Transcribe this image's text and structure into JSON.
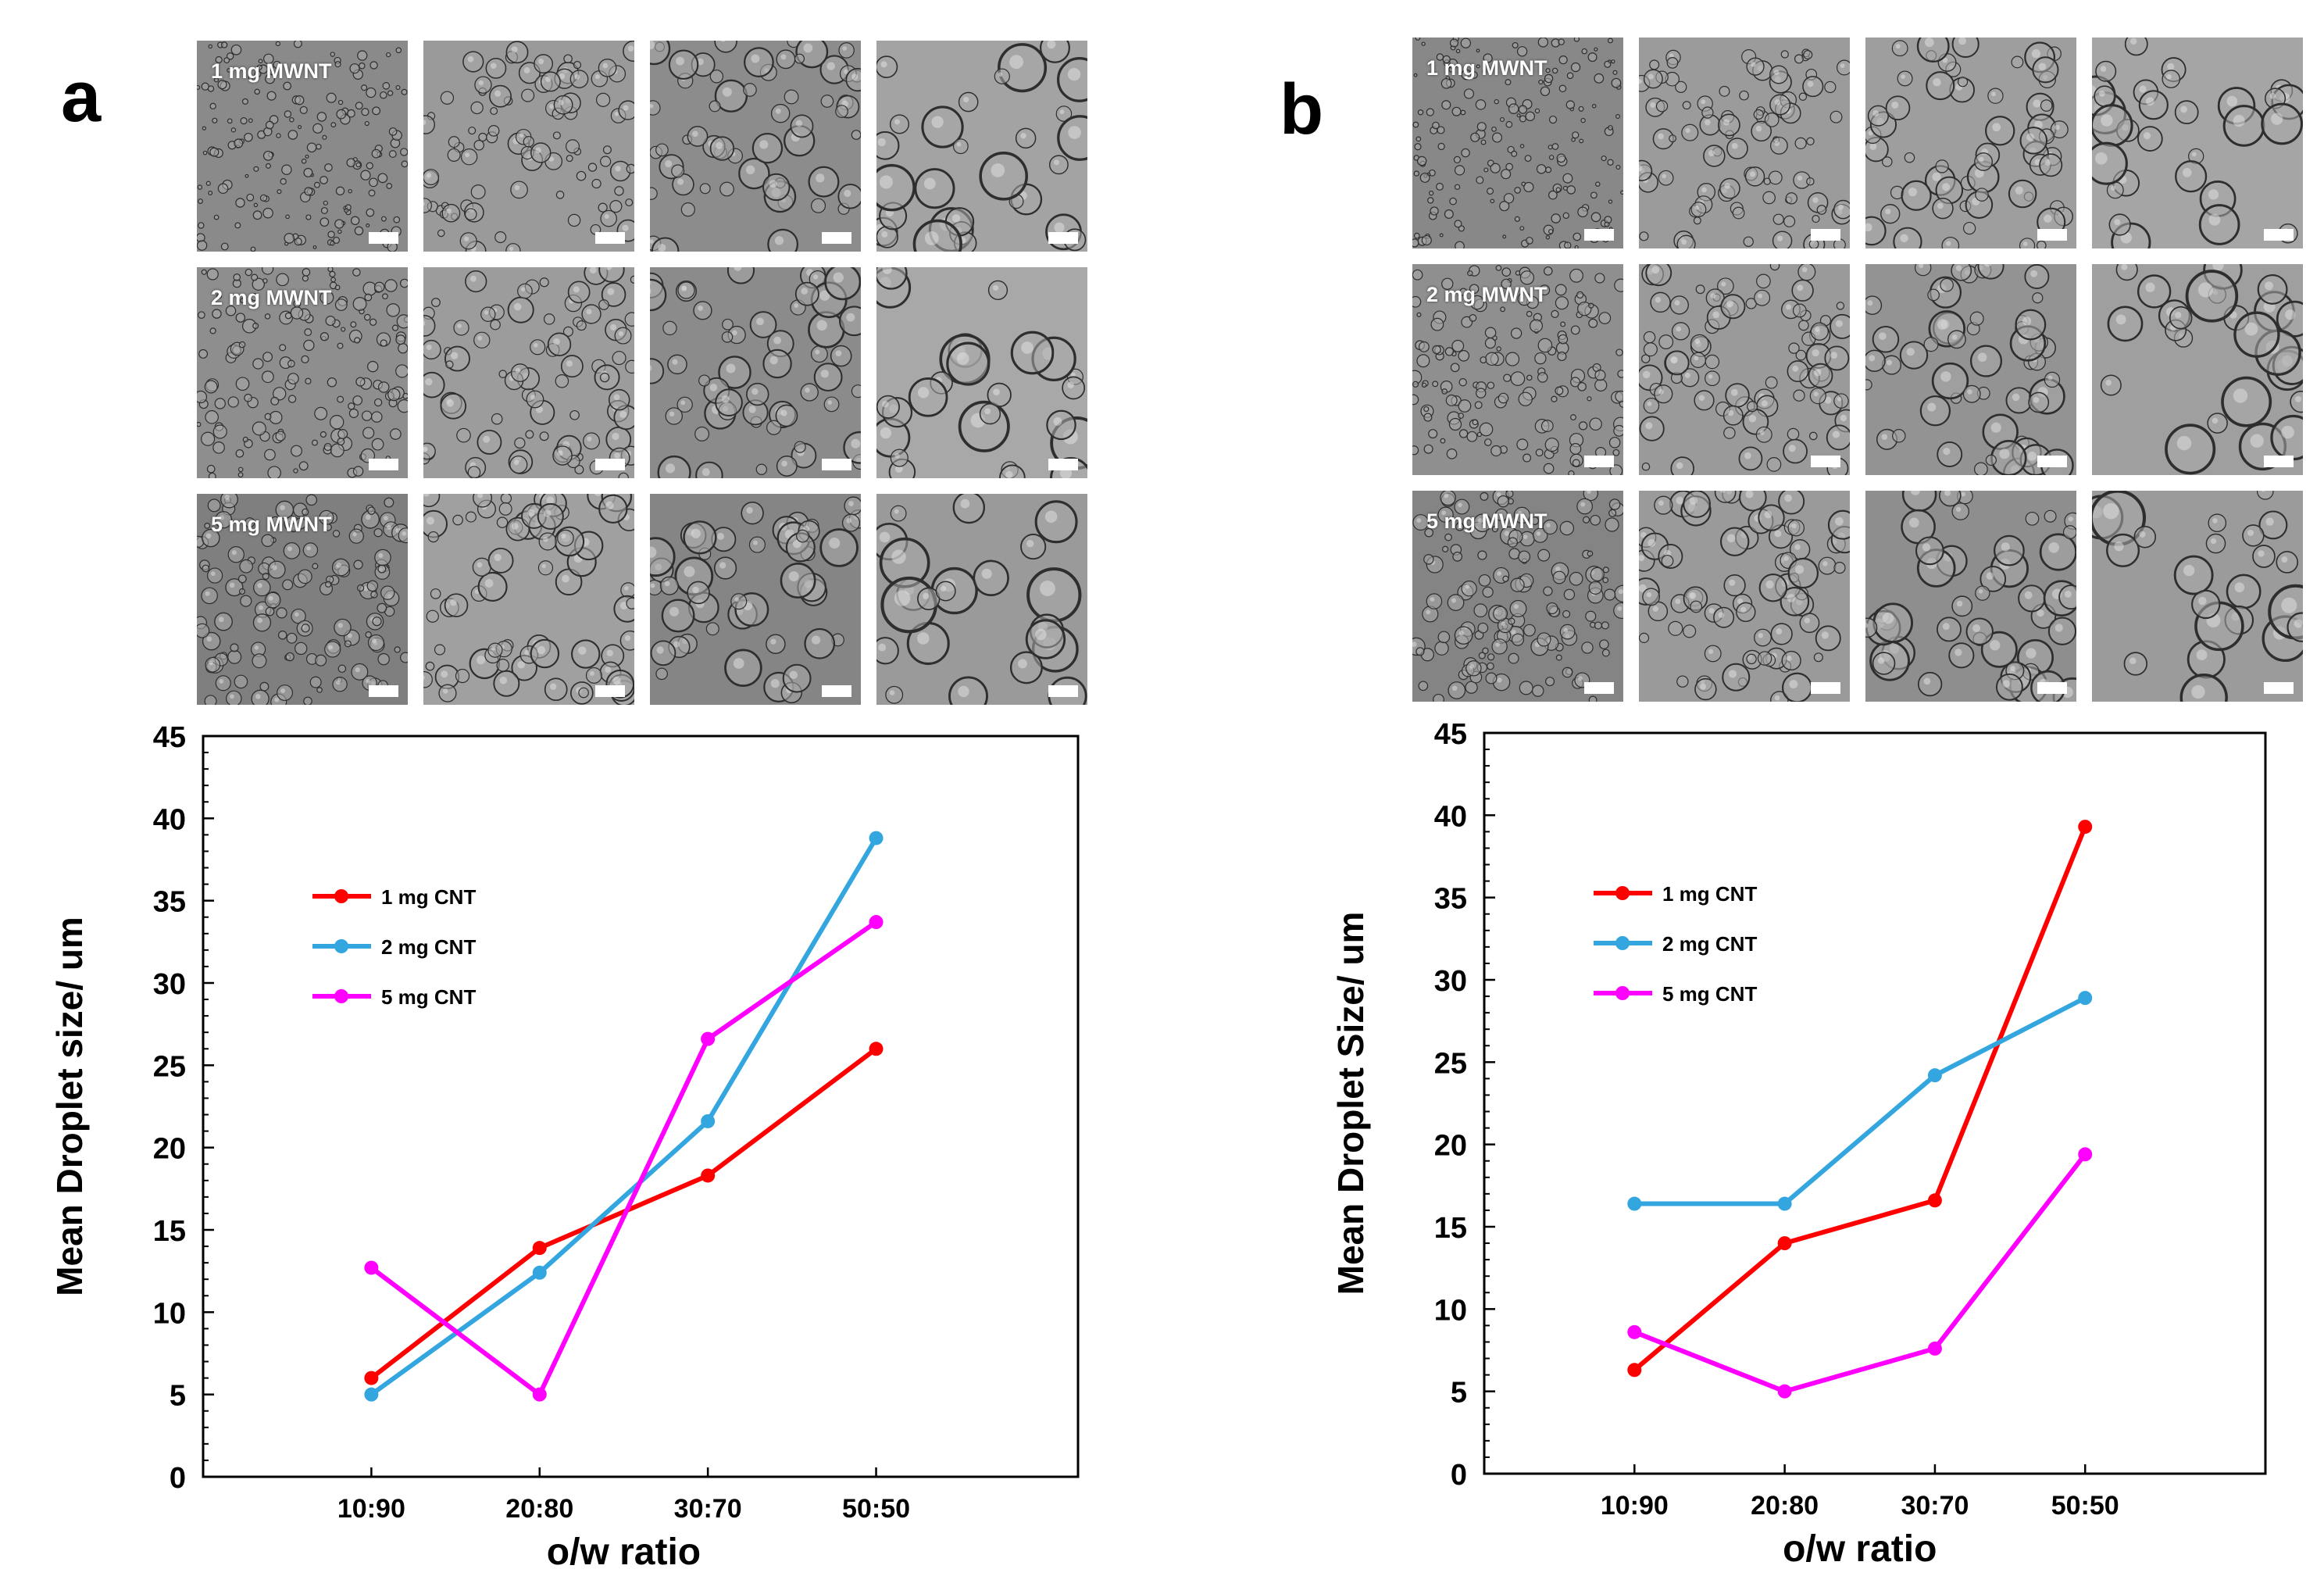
{
  "panels": [
    {
      "letter": "a",
      "row_labels": [
        "1 mg MWNT",
        "2 mg MWNT",
        "5 mg MWNT"
      ],
      "micrograph_tones": [
        [
          "#8a8a8a",
          "#9a9a9a",
          "#8c8c8c",
          "#a3a3a3"
        ],
        [
          "#8e8e8e",
          "#9c9c9c",
          "#8b8b8b",
          "#a8a8a8"
        ],
        [
          "#7f7f7f",
          "#a0a0a0",
          "#858585",
          "#9a9a9a"
        ]
      ]
    },
    {
      "letter": "b",
      "row_labels": [
        "1 mg MWNT",
        "2 mg MWNT",
        "5 mg MWNT"
      ],
      "micrograph_tones": [
        [
          "#888888",
          "#9b9b9b",
          "#9e9e9e",
          "#a5a5a5"
        ],
        [
          "#8f8f8f",
          "#9a9a9a",
          "#939393",
          "#9f9f9f"
        ],
        [
          "#848484",
          "#9a9a9a",
          "#8e8e8e",
          "#9b9b9b"
        ]
      ]
    }
  ],
  "chart_data": [
    {
      "type": "line",
      "panel": "a",
      "xlabel": "o/w ratio",
      "ylabel": "Mean Droplet size/ um",
      "categories": [
        "10:90",
        "20:80",
        "30:70",
        "50:50"
      ],
      "ylim": [
        0,
        45
      ],
      "yticks": [
        "0",
        "5",
        "10",
        "15",
        "20",
        "25",
        "30",
        "35",
        "40",
        "45"
      ],
      "grid": false,
      "legend_position": "upper-left",
      "series": [
        {
          "name": "1 mg CNT",
          "color": "#ff0000",
          "values": [
            6,
            13.9,
            18.3,
            26
          ]
        },
        {
          "name": "2 mg CNT",
          "color": "#33a6e0",
          "values": [
            5,
            12.4,
            21.6,
            38.8
          ]
        },
        {
          "name": "5 mg CNT",
          "color": "#ff00ff",
          "values": [
            12.7,
            5,
            26.6,
            33.7
          ]
        }
      ]
    },
    {
      "type": "line",
      "panel": "b",
      "xlabel": "o/w ratio",
      "ylabel": "Mean Droplet Size/ um",
      "categories": [
        "10:90",
        "20:80",
        "30:70",
        "50:50"
      ],
      "ylim": [
        0,
        45
      ],
      "yticks": [
        "0",
        "5",
        "10",
        "15",
        "20",
        "25",
        "30",
        "35",
        "40",
        "45"
      ],
      "grid": false,
      "legend_position": "upper-left",
      "series": [
        {
          "name": "1 mg CNT",
          "color": "#ff0000",
          "values": [
            6.3,
            14,
            16.6,
            39.3
          ]
        },
        {
          "name": "2 mg CNT",
          "color": "#33a6e0",
          "values": [
            16.4,
            16.4,
            24.2,
            28.9
          ]
        },
        {
          "name": "5 mg CNT",
          "color": "#ff00ff",
          "values": [
            8.6,
            5,
            7.6,
            19.4
          ]
        }
      ]
    }
  ]
}
